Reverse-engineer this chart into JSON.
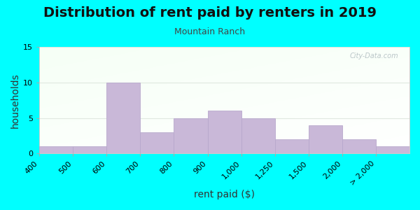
{
  "title": "Distribution of rent paid by renters in 2019",
  "subtitle": "Mountain Ranch",
  "xlabel": "rent paid ($)",
  "ylabel": "households",
  "bar_labels": [
    "400",
    "500",
    "600",
    "700",
    "800",
    "900",
    "1,000",
    "1,250",
    "1,500",
    "2,000",
    "> 2,000"
  ],
  "bar_values": [
    1,
    1,
    10,
    3,
    5,
    6,
    5,
    2,
    4,
    2,
    1
  ],
  "bar_color": "#c9b8d8",
  "bar_edgecolor": "#b8a8cc",
  "ylim": [
    0,
    15
  ],
  "yticks": [
    0,
    5,
    10,
    15
  ],
  "figure_bg": "#00FFFF",
  "watermark": "City-Data.com",
  "title_fontsize": 14,
  "subtitle_fontsize": 9,
  "axis_label_fontsize": 10,
  "tick_fontsize": 8,
  "grad_colors": [
    "#d4eeda",
    "#e8f5e8",
    "#f5faf5",
    "#ffffff"
  ],
  "grid_color": "#e0e8e0",
  "spine_color": "#cccccc"
}
